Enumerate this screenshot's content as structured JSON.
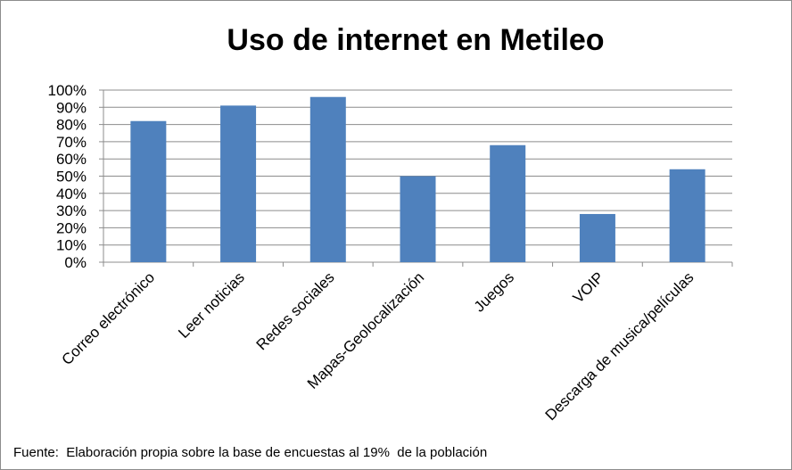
{
  "chart_data": {
    "type": "bar",
    "title": "Uso de internet en Metileo",
    "categories": [
      "Correo electrónico",
      "Leer noticias",
      "Redes sociales",
      "Mapas-Geolocalización",
      "Juegos",
      "VOIP",
      "Descarga de musica/películas"
    ],
    "values": [
      0.82,
      0.91,
      0.96,
      0.5,
      0.68,
      0.28,
      0.54
    ],
    "ylim": [
      0,
      1
    ],
    "yticks": [
      "0%",
      "10%",
      "20%",
      "30%",
      "40%",
      "50%",
      "60%",
      "70%",
      "80%",
      "90%",
      "100%"
    ],
    "grid": true,
    "legend": "none",
    "bar_color": "#4f81bd",
    "grid_color": "#8c8c8c"
  },
  "source_note": "Fuente:  Elaboración propia sobre la base de encuestas al 19%  de la población"
}
